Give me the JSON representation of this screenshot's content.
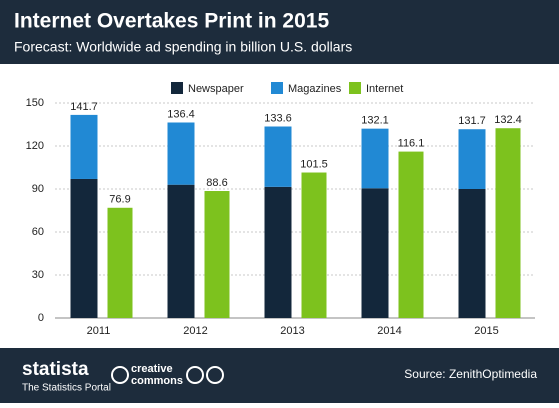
{
  "chart_data": {
    "type": "bar",
    "title": "Internet Overtakes Print in 2015",
    "subtitle": "Forecast: Worldwide ad spending in billion U.S. dollars",
    "categories": [
      "2011",
      "2012",
      "2013",
      "2014",
      "2015"
    ],
    "series": [
      {
        "name": "Newspaper",
        "color": "#13273b",
        "values": [
          97.0,
          93.0,
          91.5,
          90.5,
          90.0
        ]
      },
      {
        "name": "Magazines",
        "color": "#2189d4",
        "values": [
          44.7,
          43.4,
          42.1,
          41.6,
          41.7
        ]
      },
      {
        "name": "Internet",
        "color": "#7dc21e",
        "values": [
          76.9,
          88.6,
          101.5,
          116.1,
          132.4
        ]
      }
    ],
    "stacks": [
      [
        0,
        1
      ],
      [
        2
      ]
    ],
    "totals": [
      141.7,
      136.4,
      133.6,
      132.1,
      131.7
    ],
    "ylim": [
      0,
      150
    ],
    "yticks": [
      0,
      30,
      60,
      90,
      120,
      150
    ],
    "grid": true
  },
  "footer": {
    "brand": "statista",
    "tagline": "The Statistics Portal",
    "license_1": "creative",
    "license_2": "commons",
    "source": "Source: ZenithOptimedia"
  }
}
